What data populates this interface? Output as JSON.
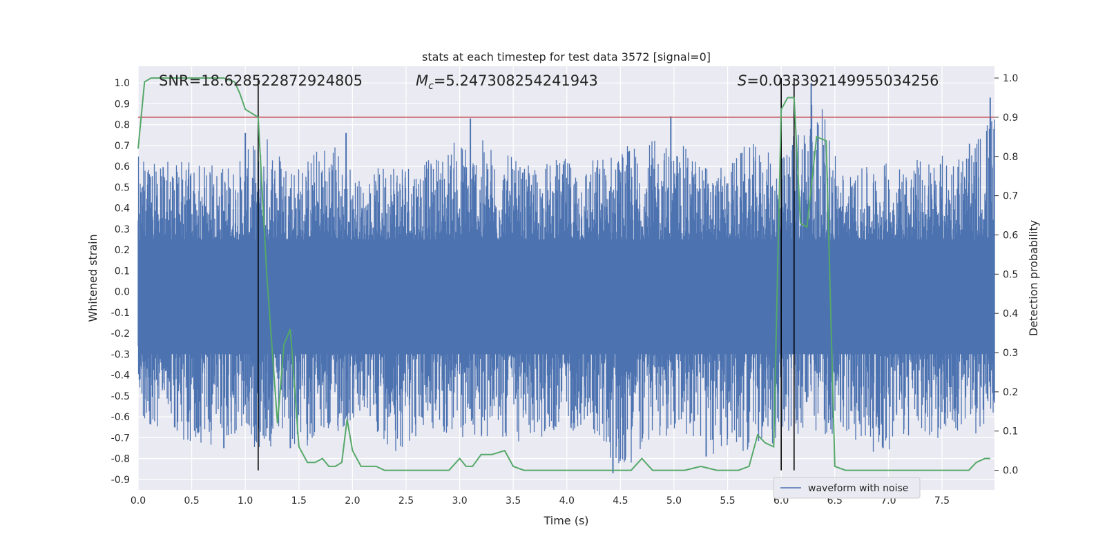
{
  "chart_data": {
    "type": "line",
    "title": "stats at each timestep for test data 3572 [signal=0]",
    "xlabel": "Time (s)",
    "ylabel_left": "Whitened strain",
    "ylabel_right": "Detection probability",
    "xlim": [
      0.0,
      7.99
    ],
    "ylim_left": [
      -0.95,
      1.08
    ],
    "ylim_right": [
      -0.05,
      1.03
    ],
    "x_ticks": [
      "0.0",
      "0.5",
      "1.0",
      "1.5",
      "2.0",
      "2.5",
      "3.0",
      "3.5",
      "4.0",
      "4.5",
      "5.0",
      "5.5",
      "6.0",
      "6.5",
      "7.0",
      "7.5"
    ],
    "y_left_ticks": [
      "-0.9",
      "-0.8",
      "-0.7",
      "-0.6",
      "-0.5",
      "-0.4",
      "-0.3",
      "-0.2",
      "-0.1",
      "0.0",
      "0.1",
      "0.2",
      "0.3",
      "0.4",
      "0.5",
      "0.6",
      "0.7",
      "0.8",
      "0.9",
      "1.0"
    ],
    "y_right_ticks": [
      "0.0",
      "0.1",
      "0.2",
      "0.3",
      "0.4",
      "0.5",
      "0.6",
      "0.7",
      "0.8",
      "0.9",
      "1.0"
    ],
    "grid": true,
    "legend_location": "lower right",
    "colors": {
      "background": "#eaeaf2",
      "grid": "#ffffff",
      "waveform": "#4c72b0",
      "probability": "#55a868",
      "threshold": "#c44e52",
      "markers": "#000000"
    },
    "annotations": {
      "snr": "SNR=18.628522872924805",
      "mc_symbol": "M",
      "mc_sub": "c",
      "mc_value": "=5.247308254241943",
      "s_symbol": "S",
      "s_value": "=0.033392149955034256"
    },
    "threshold_probability": 0.9,
    "vertical_markers": [
      1.12,
      6.0,
      6.12
    ],
    "series": [
      {
        "name": "waveform with noise",
        "axis": "left",
        "envelope_x": [
          0.0,
          0.3,
          0.6,
          0.9,
          1.2,
          1.5,
          1.8,
          2.1,
          2.4,
          2.7,
          3.0,
          3.3,
          3.6,
          3.9,
          4.2,
          4.5,
          4.8,
          5.1,
          5.4,
          5.7,
          6.0,
          6.3,
          6.6,
          6.9,
          7.2,
          7.5,
          7.8,
          7.99
        ],
        "envelope_max": [
          0.66,
          0.63,
          0.62,
          0.62,
          0.77,
          0.62,
          0.76,
          0.52,
          0.68,
          0.63,
          0.75,
          0.72,
          0.6,
          0.64,
          0.64,
          0.7,
          0.73,
          0.7,
          0.58,
          0.72,
          0.64,
          1.0,
          0.56,
          0.62,
          0.64,
          0.66,
          0.72,
          0.93
        ],
        "envelope_min": [
          -0.61,
          -0.7,
          -0.75,
          -0.72,
          -0.78,
          -0.75,
          -0.72,
          -0.62,
          -0.77,
          -0.68,
          -0.72,
          -0.7,
          -0.74,
          -0.68,
          -0.66,
          -0.87,
          -0.72,
          -0.7,
          -0.79,
          -0.76,
          -0.72,
          -0.69,
          -0.69,
          -0.78,
          -0.72,
          -0.7,
          -0.7,
          -0.6
        ],
        "spikes_up": [
          {
            "x": 1.0,
            "y": 0.76
          },
          {
            "x": 1.94,
            "y": 0.76
          },
          {
            "x": 3.1,
            "y": 0.83
          },
          {
            "x": 4.97,
            "y": 0.84
          },
          {
            "x": 6.28,
            "y": 1.0
          },
          {
            "x": 7.95,
            "y": 0.93
          }
        ],
        "spikes_down": [
          {
            "x": 0.8,
            "y": -0.75
          },
          {
            "x": 1.42,
            "y": -0.75
          },
          {
            "x": 4.43,
            "y": -0.87
          },
          {
            "x": 5.3,
            "y": -0.79
          },
          {
            "x": 6.95,
            "y": -0.75
          }
        ]
      },
      {
        "name": "detection probability",
        "axis": "right",
        "x": [
          0.0,
          0.06,
          0.12,
          0.5,
          0.8,
          0.9,
          0.95,
          1.0,
          1.06,
          1.12,
          1.2,
          1.3,
          1.36,
          1.42,
          1.5,
          1.58,
          1.65,
          1.72,
          1.78,
          1.84,
          1.9,
          1.95,
          2.0,
          2.08,
          2.16,
          2.22,
          2.3,
          2.4,
          2.6,
          2.9,
          3.0,
          3.06,
          3.12,
          3.2,
          3.3,
          3.42,
          3.5,
          3.6,
          3.8,
          4.0,
          4.2,
          4.4,
          4.6,
          4.7,
          4.8,
          4.9,
          5.0,
          5.1,
          5.25,
          5.4,
          5.6,
          5.7,
          5.78,
          5.85,
          5.93,
          6.0,
          6.06,
          6.12,
          6.18,
          6.24,
          6.33,
          6.42,
          6.5,
          6.6,
          6.8,
          7.0,
          7.2,
          7.5,
          7.75,
          7.82,
          7.9,
          7.95
        ],
        "y": [
          0.82,
          0.99,
          1.0,
          1.0,
          1.0,
          0.99,
          0.96,
          0.92,
          0.91,
          0.9,
          0.5,
          0.12,
          0.32,
          0.36,
          0.06,
          0.02,
          0.02,
          0.03,
          0.01,
          0.01,
          0.02,
          0.13,
          0.05,
          0.01,
          0.01,
          0.01,
          0.0,
          0.0,
          0.0,
          0.0,
          0.03,
          0.01,
          0.01,
          0.04,
          0.04,
          0.05,
          0.01,
          0.0,
          0.0,
          0.0,
          0.0,
          0.0,
          0.0,
          0.03,
          0.0,
          0.0,
          0.0,
          0.0,
          0.01,
          0.0,
          0.0,
          0.01,
          0.09,
          0.07,
          0.06,
          0.92,
          0.95,
          0.95,
          0.63,
          0.62,
          0.85,
          0.84,
          0.01,
          0.0,
          0.0,
          0.0,
          0.0,
          0.0,
          0.0,
          0.02,
          0.03,
          0.03
        ]
      }
    ]
  }
}
